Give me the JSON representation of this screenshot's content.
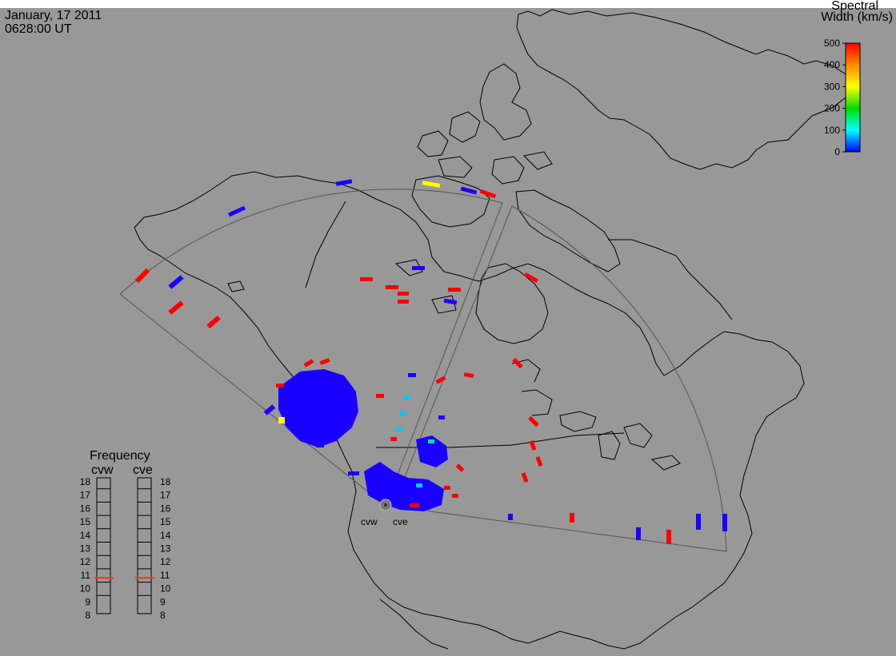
{
  "header": {
    "date": "January, 17 2011",
    "time": "0628:00 UT"
  },
  "colorbar": {
    "title_line1": "Spectral",
    "title_line2": "Width (km/s)",
    "ticks": [
      "500",
      "400",
      "300",
      "200",
      "100",
      "0"
    ],
    "range": [
      0,
      500
    ],
    "stops": [
      "#ff0000",
      "#ff8800",
      "#ffff00",
      "#00dd00",
      "#00ffff",
      "#0000ff"
    ]
  },
  "frequency_panel": {
    "title": "Frequency",
    "radars": [
      "cvw",
      "cve"
    ],
    "ticks": [
      "18",
      "17",
      "16",
      "15",
      "14",
      "13",
      "12",
      "11",
      "10",
      "9",
      "8"
    ],
    "range_mhz": [
      8,
      18
    ],
    "values_mhz": [
      10.8,
      10.8
    ],
    "marker_color": "#ff3300"
  },
  "radar_sites": {
    "labels": [
      "cvw",
      "cve"
    ]
  },
  "map": {
    "background": "#989898",
    "coast_color": "#000000",
    "fov_color": "#555555"
  }
}
